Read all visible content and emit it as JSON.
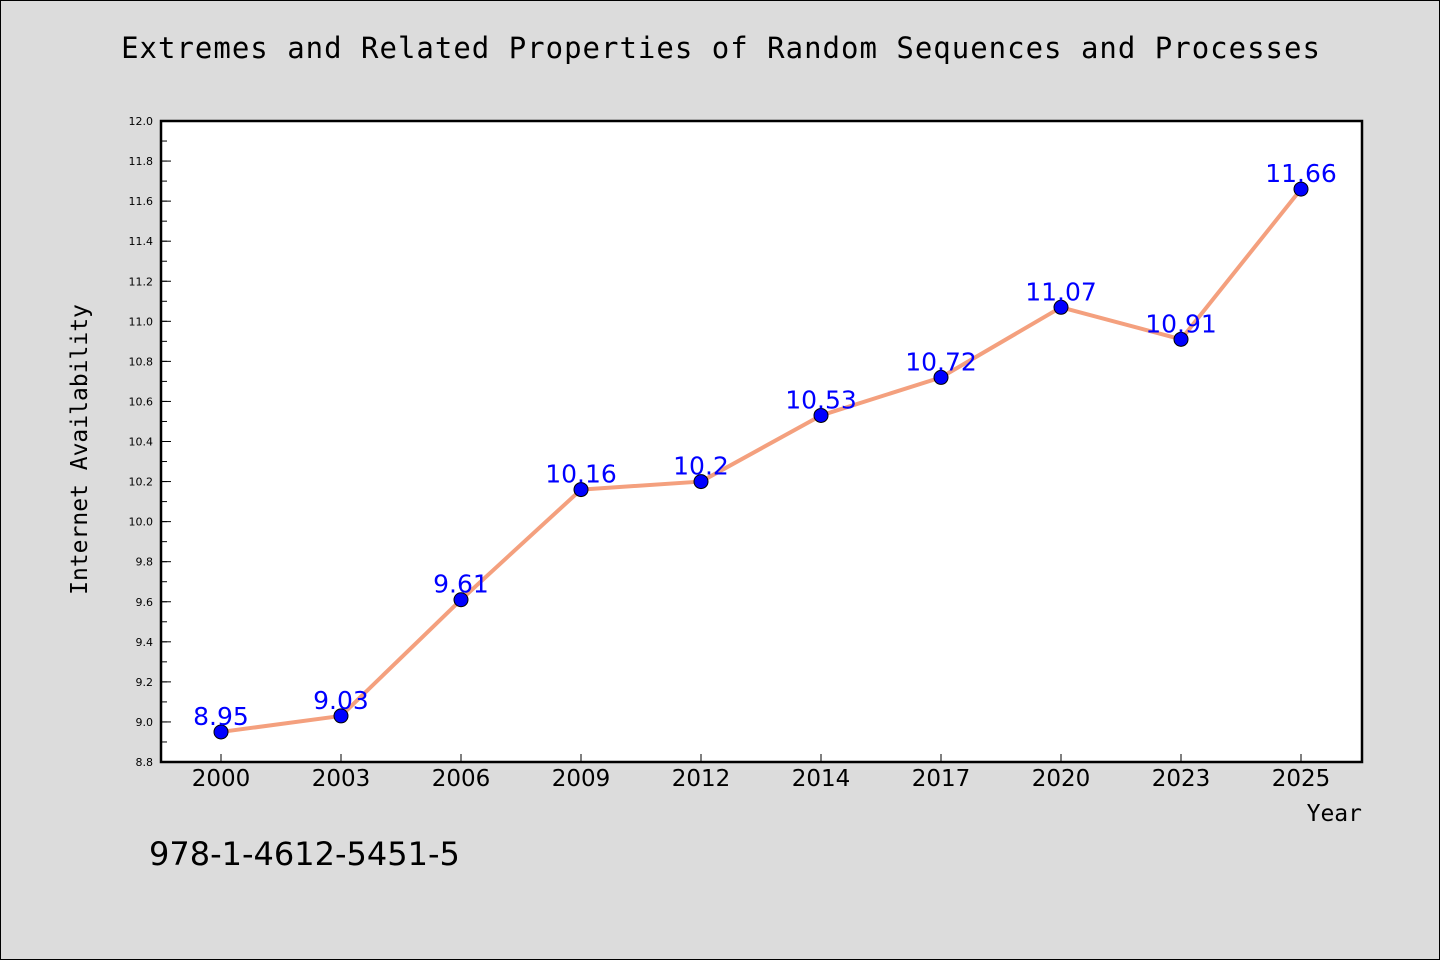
{
  "footer_code": "978-1-4612-5451-5",
  "colors": {
    "line": "#f4a07e",
    "marker": "#0000ff",
    "label": "#0000ff",
    "background": "#dcdcdc",
    "plot_background": "#ffffff"
  },
  "chart_data": {
    "type": "line",
    "title": "Extremes and Related Properties of Random Sequences and Processes",
    "xlabel": "Year",
    "ylabel": "Internet Availability",
    "categories": [
      "2000",
      "2003",
      "2006",
      "2009",
      "2012",
      "2014",
      "2017",
      "2020",
      "2023",
      "2025"
    ],
    "series": [
      {
        "values": [
          8.95,
          9.03,
          9.61,
          10.16,
          10.2,
          10.53,
          10.72,
          11.07,
          10.91,
          11.66
        ],
        "labels": [
          "8.95",
          "9.03",
          "9.61",
          "10.16",
          "10.2",
          "10.53",
          "10.72",
          "11.07",
          "10.91",
          "11.66"
        ]
      }
    ],
    "ylim": [
      8.8,
      12.0
    ],
    "y_ticks": [
      "8.8",
      "9.0",
      "9.2",
      "9.4",
      "9.6",
      "9.8",
      "10.0",
      "10.2",
      "10.4",
      "10.6",
      "10.8",
      "11.0",
      "11.2",
      "11.4",
      "11.6",
      "11.8",
      "12.0"
    ],
    "grid": false,
    "legend": "none"
  }
}
